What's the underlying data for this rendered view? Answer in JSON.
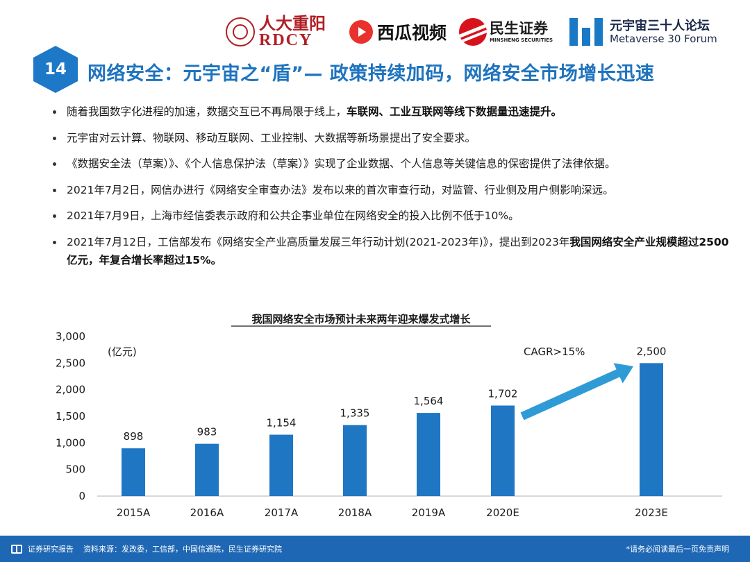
{
  "header": {
    "logos": {
      "rdcy_cn": "人大重阳",
      "rdcy_en": "RDCY",
      "xigua": "西瓜视频",
      "minsheng_cn": "民生证券",
      "minsheng_en": "MINSHENG SECURITIES",
      "metaverse_cn": "元宇宙三十人论坛",
      "metaverse_en": "Metaverse 30 Forum"
    },
    "page_number": "14",
    "title": "网络安全：元宇宙之“盾”— 政策持续加码，网络安全市场增长迅速"
  },
  "bullets": [
    {
      "text": "随着我国数字化进程的加速，数据交互已不再局限于线上，",
      "bold": "车联网、工业互联网等线下数据量迅速提升。",
      "tail": ""
    },
    {
      "text": "元宇宙对云计算、物联网、移动互联网、工业控制、大数据等新场景提出了安全要求。",
      "bold": "",
      "tail": ""
    },
    {
      "text": "《数据安全法（草案）》、《个人信息保护法（草案）》实现了企业数据、个人信息等关键信息的保密提供了法律依据。",
      "bold": "",
      "tail": ""
    },
    {
      "text": "2021年7月2日，网信办进行《网络安全审查办法》发布以来的首次审查行动，对监管、行业侧及用户侧影响深远。",
      "bold": "",
      "tail": ""
    },
    {
      "text": "2021年7月9日，上海市经信委表示政府和公共企事业单位在网络安全的投入比例不低于10%。",
      "bold": "",
      "tail": ""
    },
    {
      "text": "2021年7月12日，工信部发布《网络安全产业高质量发展三年行动计划(2021-2023年)》，提出到2023年",
      "bold": "我国网络安全产业规模超过2500亿元，年复合增长率超过15%。",
      "tail": ""
    }
  ],
  "chart_data": {
    "type": "bar",
    "title": "我国网络安全市场预计未来两年迎来爆发式增长",
    "unit_label": "(亿元)",
    "categories": [
      "2015A",
      "2016A",
      "2017A",
      "2018A",
      "2019A",
      "2020E",
      "2023E"
    ],
    "values": [
      898,
      983,
      1154,
      1335,
      1564,
      1702,
      2500
    ],
    "value_labels": [
      "898",
      "983",
      "1,154",
      "1,335",
      "1,564",
      "1,702",
      "2,500"
    ],
    "ylim": [
      0,
      3000
    ],
    "yticks": [
      0,
      500,
      1000,
      1500,
      2000,
      2500,
      3000
    ],
    "ytick_labels": [
      "0",
      "500",
      "1,000",
      "1,500",
      "2,000",
      "2,500",
      "3,000"
    ],
    "annotation": "CAGR>15%",
    "bar_color": "#1f77c4",
    "arrow_color": "#2e9bd6",
    "grid": false,
    "legend": "none"
  },
  "footer": {
    "report": "证券研究报告",
    "source": "资料来源：发改委，工信部，中国信通院，民生证券研究院",
    "disclaimer": "*请务必阅读最后一页免责声明"
  },
  "colors": {
    "accent": "#1e73be",
    "footer_bg": "#1e67b4"
  }
}
